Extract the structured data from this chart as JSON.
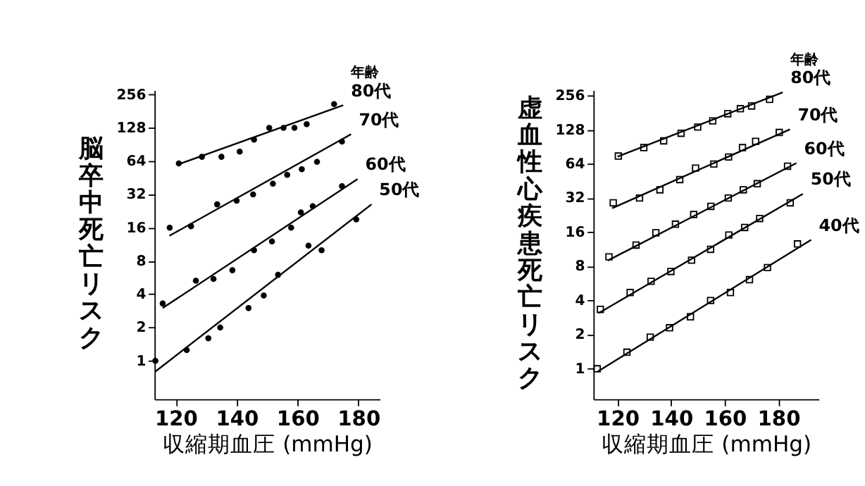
{
  "chart_data": [
    {
      "type": "scatter",
      "xlabel": "収縮期血圧 (mmHg)",
      "ylabel": "脳卒中死亡リスク",
      "legend_title": "年齢",
      "log": "y",
      "marker": "circle",
      "grid": false,
      "xlim": [
        113,
        187
      ],
      "xticks": [
        120,
        140,
        160,
        180
      ],
      "ylim": [
        0.45,
        280
      ],
      "yticks": [
        1,
        2,
        4,
        8,
        16,
        32,
        64,
        128,
        256
      ],
      "series": [
        {
          "name": "80代",
          "color": "#000000",
          "x": [
            121,
            128.6,
            135,
            141,
            145.7,
            150.7,
            155.4,
            159,
            163,
            172
          ],
          "values": [
            61,
            70,
            70,
            78,
            100,
            128,
            128,
            128,
            138,
            210
          ]
        },
        {
          "type": "line",
          "marker": "none",
          "color": "#000000",
          "x": [
            121,
            175
          ],
          "values": [
            60,
            205
          ]
        },
        {
          "name": "70代",
          "color": "#000000",
          "x": [
            118,
            125,
            133.6,
            140,
            145.4,
            151.9,
            156.6,
            161.4,
            166.4,
            174.6
          ],
          "values": [
            16,
            16.5,
            26,
            28,
            32,
            40,
            48,
            54,
            63,
            96
          ]
        },
        {
          "type": "line",
          "marker": "none",
          "color": "#000000",
          "x": [
            117.9,
            177.6
          ],
          "values": [
            13.5,
            112
          ]
        },
        {
          "name": "60代",
          "color": "#000000",
          "x": [
            115.7,
            126.6,
            132.4,
            138.6,
            145.7,
            151.6,
            157.9,
            161.1,
            165,
            174.6
          ],
          "values": [
            3.3,
            5.3,
            5.5,
            6.6,
            10,
            12,
            16,
            22,
            25,
            38
          ]
        },
        {
          "type": "line",
          "marker": "none",
          "color": "#000000",
          "x": [
            115.7,
            179.7
          ],
          "values": [
            3,
            44
          ]
        },
        {
          "name": "50代",
          "color": "#000000",
          "x": [
            113.3,
            123.6,
            130.7,
            134.6,
            143.9,
            148.9,
            153.6,
            163.6,
            167.9,
            179.3
          ],
          "values": [
            1.0,
            1.25,
            1.6,
            2.0,
            3.0,
            3.9,
            6,
            11,
            10,
            19
          ]
        },
        {
          "type": "line",
          "marker": "none",
          "color": "#000000",
          "x": [
            113.3,
            184.3
          ],
          "values": [
            0.8,
            26
          ]
        }
      ]
    },
    {
      "type": "scatter",
      "xlabel": "収縮期血圧 (mmHg)",
      "ylabel": "虚血性心疾患死亡リスク",
      "legend_title": "年齢",
      "log": "y",
      "marker": "square",
      "grid": false,
      "xlim": [
        111,
        195
      ],
      "xticks": [
        120,
        140,
        160,
        180
      ],
      "ylim": [
        0.54,
        285
      ],
      "yticks": [
        1,
        2,
        4,
        8,
        16,
        32,
        64,
        128,
        256
      ],
      "series": [
        {
          "name": "80代",
          "color": "#000000",
          "x": [
            120.3,
            129.8,
            137.2,
            143.7,
            149.9,
            155.5,
            161.1,
            165.8,
            170,
            176.7
          ],
          "values": [
            75,
            89,
            102,
            119,
            135,
            153,
            177,
            196,
            207,
            237
          ]
        },
        {
          "type": "line",
          "marker": "none",
          "color": "#000000",
          "x": [
            120,
            181.6
          ],
          "values": [
            74,
            273
          ]
        },
        {
          "name": "70代",
          "color": "#000000",
          "x": [
            118.4,
            128.2,
            135.8,
            143.2,
            149.1,
            155.9,
            161.4,
            166.6,
            171.5,
            180.3
          ],
          "values": [
            29,
            32,
            37.8,
            46.5,
            58.7,
            63.8,
            73.5,
            89,
            101,
            121
          ]
        },
        {
          "type": "line",
          "marker": "none",
          "color": "#000000",
          "x": [
            118,
            184.3
          ],
          "values": [
            26,
            129
          ]
        },
        {
          "name": "60代",
          "color": "#000000",
          "x": [
            116.8,
            126.9,
            134.3,
            141.6,
            148.4,
            154.8,
            161.3,
            166.9,
            172.1,
            183.4
          ],
          "values": [
            9.7,
            12.3,
            15.8,
            18.8,
            22.9,
            27,
            32,
            37.8,
            42.8,
            61
          ]
        },
        {
          "type": "line",
          "marker": "none",
          "color": "#000000",
          "x": [
            116.4,
            186.7
          ],
          "values": [
            9,
            65
          ]
        },
        {
          "name": "50代",
          "color": "#000000",
          "x": [
            113.6,
            124.7,
            132.5,
            139.9,
            147.6,
            154.7,
            161.5,
            167.4,
            173,
            184.4
          ],
          "values": [
            3.34,
            4.7,
            5.9,
            7.2,
            9.06,
            11.3,
            15.1,
            17.6,
            21.1,
            29
          ]
        },
        {
          "type": "line",
          "marker": "none",
          "color": "#000000",
          "x": [
            113,
            189.1
          ],
          "values": [
            3.1,
            34.8
          ]
        },
        {
          "name": "40代",
          "color": "#000000",
          "x": [
            112.4,
            123.5,
            132.2,
            139.4,
            147.2,
            154.7,
            162.1,
            169.2,
            175.9,
            187.1
          ],
          "values": [
            1.0,
            1.4,
            1.9,
            2.3,
            2.87,
            4,
            4.7,
            6.1,
            7.8,
            12.6
          ]
        },
        {
          "type": "line",
          "marker": "none",
          "color": "#000000",
          "x": [
            112.4,
            192.2
          ],
          "values": [
            0.94,
            13.7
          ]
        }
      ]
    }
  ]
}
